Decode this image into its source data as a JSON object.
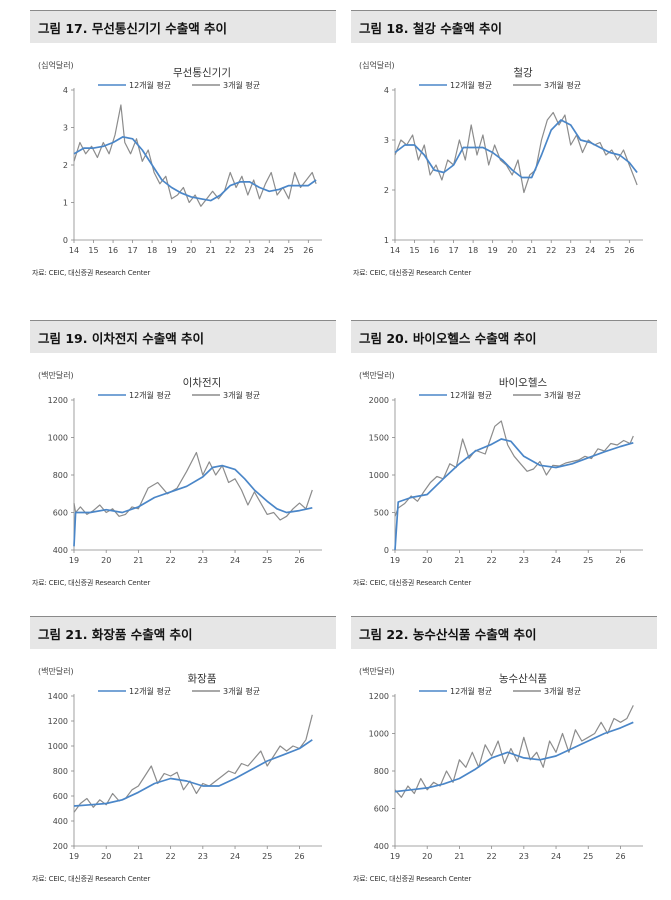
{
  "source_text": "자료: CEIC, 대신증권 Research Center",
  "legend": {
    "avg12": "12개월 평균",
    "avg3": "3개월 평균"
  },
  "colors": {
    "avg12": "#4a86c8",
    "avg3": "#8c8c8c",
    "axis": "#888888"
  },
  "panels": [
    {
      "header": "그림 17. 무선통신기기 수출액 추이",
      "unit": "(십억달러)"
    },
    {
      "header": "그림 18. 철강 수출액 추이",
      "unit": "(십억달러)"
    },
    {
      "header": "그림 19. 이차전지 수출액 추이",
      "unit": "(백만달러)"
    },
    {
      "header": "그림 20. 바이오헬스 수출액 추이",
      "unit": "(백만달러)"
    },
    {
      "header": "그림 21. 화장품 수출액 추이",
      "unit": "(백만달러)"
    },
    {
      "header": "그림 22. 농수산식품 수출액 추이",
      "unit": "(백만달러)"
    }
  ],
  "chart_data": [
    {
      "type": "line",
      "title": "무선통신기기",
      "x_ticks": [
        "14",
        "15",
        "16",
        "17",
        "18",
        "19",
        "20",
        "21",
        "22",
        "23",
        "24",
        "25",
        "26"
      ],
      "xlim": [
        2014.0,
        2026.7
      ],
      "ylim": [
        0,
        4
      ],
      "y_ticks": [
        0,
        1,
        2,
        3,
        4
      ],
      "series": [
        {
          "name": "12개월 평균",
          "x": [
            2014.0,
            2014.5,
            2015.0,
            2015.5,
            2016.0,
            2016.5,
            2017.0,
            2017.5,
            2018.0,
            2018.5,
            2019.0,
            2019.5,
            2020.0,
            2020.5,
            2021.0,
            2021.5,
            2022.0,
            2022.5,
            2023.0,
            2023.5,
            2024.0,
            2024.5,
            2025.0,
            2025.5,
            2026.0,
            2026.4
          ],
          "y": [
            2.3,
            2.45,
            2.45,
            2.5,
            2.6,
            2.75,
            2.7,
            2.4,
            2.0,
            1.6,
            1.4,
            1.25,
            1.15,
            1.1,
            1.05,
            1.2,
            1.45,
            1.55,
            1.55,
            1.4,
            1.3,
            1.35,
            1.45,
            1.45,
            1.45,
            1.6
          ]
        },
        {
          "name": "3개월 평균",
          "x": [
            2014.0,
            2014.3,
            2014.6,
            2014.9,
            2015.2,
            2015.5,
            2015.8,
            2016.1,
            2016.4,
            2016.6,
            2016.9,
            2017.2,
            2017.5,
            2017.8,
            2018.1,
            2018.4,
            2018.7,
            2019.0,
            2019.3,
            2019.6,
            2019.9,
            2020.2,
            2020.5,
            2020.8,
            2021.1,
            2021.4,
            2021.7,
            2022.0,
            2022.3,
            2022.6,
            2022.9,
            2023.2,
            2023.5,
            2023.8,
            2024.1,
            2024.4,
            2024.7,
            2025.0,
            2025.3,
            2025.6,
            2025.9,
            2026.2,
            2026.4
          ],
          "y": [
            2.1,
            2.6,
            2.3,
            2.5,
            2.2,
            2.6,
            2.3,
            2.8,
            3.6,
            2.6,
            2.3,
            2.7,
            2.1,
            2.4,
            1.8,
            1.5,
            1.7,
            1.1,
            1.2,
            1.4,
            1.0,
            1.2,
            0.9,
            1.1,
            1.3,
            1.1,
            1.3,
            1.8,
            1.4,
            1.7,
            1.2,
            1.6,
            1.1,
            1.5,
            1.8,
            1.2,
            1.4,
            1.1,
            1.8,
            1.4,
            1.6,
            1.8,
            1.5
          ]
        }
      ]
    },
    {
      "type": "line",
      "title": "철강",
      "x_ticks": [
        "14",
        "15",
        "16",
        "17",
        "18",
        "19",
        "20",
        "21",
        "22",
        "23",
        "24",
        "25",
        "26"
      ],
      "xlim": [
        2014.0,
        2026.7
      ],
      "ylim": [
        1,
        4
      ],
      "y_ticks": [
        1,
        2,
        3,
        4
      ],
      "series": [
        {
          "name": "12개월 평균",
          "x": [
            2014.0,
            2014.5,
            2015.0,
            2015.5,
            2016.0,
            2016.5,
            2017.0,
            2017.5,
            2018.0,
            2018.5,
            2019.0,
            2019.5,
            2020.0,
            2020.5,
            2021.0,
            2021.5,
            2022.0,
            2022.5,
            2023.0,
            2023.5,
            2024.0,
            2024.5,
            2025.0,
            2025.5,
            2026.0,
            2026.4
          ],
          "y": [
            2.75,
            2.9,
            2.9,
            2.7,
            2.4,
            2.35,
            2.5,
            2.85,
            2.85,
            2.85,
            2.75,
            2.6,
            2.4,
            2.25,
            2.25,
            2.7,
            3.2,
            3.4,
            3.3,
            3.0,
            2.95,
            2.85,
            2.75,
            2.7,
            2.55,
            2.35
          ]
        },
        {
          "name": "3개월 평균",
          "x": [
            2014.0,
            2014.3,
            2014.6,
            2014.9,
            2015.2,
            2015.5,
            2015.8,
            2016.1,
            2016.4,
            2016.7,
            2017.0,
            2017.3,
            2017.6,
            2017.9,
            2018.2,
            2018.5,
            2018.8,
            2019.1,
            2019.4,
            2019.7,
            2020.0,
            2020.3,
            2020.6,
            2020.9,
            2021.2,
            2021.5,
            2021.8,
            2022.1,
            2022.4,
            2022.7,
            2023.0,
            2023.3,
            2023.6,
            2023.9,
            2024.2,
            2024.5,
            2024.8,
            2025.1,
            2025.4,
            2025.7,
            2026.0,
            2026.3,
            2026.4
          ],
          "y": [
            2.7,
            3.0,
            2.9,
            3.1,
            2.6,
            2.9,
            2.3,
            2.5,
            2.2,
            2.6,
            2.5,
            3.0,
            2.6,
            3.3,
            2.7,
            3.1,
            2.5,
            2.9,
            2.6,
            2.5,
            2.3,
            2.6,
            1.95,
            2.3,
            2.4,
            3.0,
            3.4,
            3.55,
            3.3,
            3.5,
            2.9,
            3.1,
            2.75,
            3.0,
            2.9,
            2.95,
            2.7,
            2.8,
            2.6,
            2.8,
            2.5,
            2.2,
            2.1
          ]
        }
      ]
    },
    {
      "type": "line",
      "title": "이차전지",
      "x_ticks": [
        "19",
        "20",
        "21",
        "22",
        "23",
        "24",
        "25",
        "26"
      ],
      "xlim": [
        2019.0,
        2026.7
      ],
      "ylim": [
        400,
        1200
      ],
      "y_ticks": [
        400,
        600,
        800,
        1000,
        1200
      ],
      "series": [
        {
          "name": "12개월 평균",
          "x": [
            2019.0,
            2019.05,
            2019.5,
            2020.0,
            2020.5,
            2021.0,
            2021.5,
            2022.0,
            2022.5,
            2023.0,
            2023.3,
            2023.6,
            2024.0,
            2024.3,
            2024.6,
            2025.0,
            2025.3,
            2025.6,
            2026.0,
            2026.4
          ],
          "y": [
            420,
            600,
            600,
            615,
            600,
            630,
            680,
            710,
            740,
            790,
            840,
            850,
            830,
            780,
            720,
            660,
            620,
            600,
            610,
            625
          ]
        },
        {
          "name": "3개월 평균",
          "x": [
            2019.0,
            2019.05,
            2019.2,
            2019.4,
            2019.6,
            2019.8,
            2020.0,
            2020.2,
            2020.4,
            2020.6,
            2020.8,
            2021.0,
            2021.3,
            2021.6,
            2021.9,
            2022.2,
            2022.5,
            2022.8,
            2023.0,
            2023.2,
            2023.4,
            2023.6,
            2023.8,
            2024.0,
            2024.2,
            2024.4,
            2024.6,
            2024.8,
            2025.0,
            2025.2,
            2025.4,
            2025.6,
            2025.8,
            2026.0,
            2026.2,
            2026.4
          ],
          "y": [
            650,
            600,
            630,
            590,
            610,
            640,
            600,
            620,
            580,
            590,
            630,
            620,
            730,
            760,
            700,
            730,
            820,
            920,
            800,
            870,
            800,
            850,
            760,
            780,
            720,
            640,
            710,
            650,
            590,
            600,
            560,
            580,
            620,
            650,
            620,
            720
          ]
        }
      ]
    },
    {
      "type": "line",
      "title": "바이오헬스",
      "x_ticks": [
        "19",
        "20",
        "21",
        "22",
        "23",
        "24",
        "25",
        "26"
      ],
      "xlim": [
        2019.0,
        2026.7
      ],
      "ylim": [
        0,
        2000
      ],
      "y_ticks": [
        0,
        500,
        1000,
        1500,
        2000
      ],
      "series": [
        {
          "name": "12개월 평균",
          "x": [
            2019.0,
            2019.1,
            2019.5,
            2020.0,
            2020.5,
            2021.0,
            2021.5,
            2022.0,
            2022.3,
            2022.6,
            2023.0,
            2023.5,
            2024.0,
            2024.5,
            2025.0,
            2025.5,
            2026.0,
            2026.4
          ],
          "y": [
            0,
            640,
            700,
            740,
            950,
            1150,
            1320,
            1410,
            1480,
            1450,
            1250,
            1130,
            1100,
            1150,
            1230,
            1310,
            1380,
            1430
          ]
        },
        {
          "name": "3개월 평균",
          "x": [
            2019.0,
            2019.1,
            2019.3,
            2019.5,
            2019.7,
            2019.9,
            2020.1,
            2020.3,
            2020.5,
            2020.7,
            2020.9,
            2021.1,
            2021.3,
            2021.5,
            2021.8,
            2022.1,
            2022.3,
            2022.5,
            2022.7,
            2022.9,
            2023.1,
            2023.3,
            2023.5,
            2023.7,
            2023.9,
            2024.1,
            2024.3,
            2024.5,
            2024.7,
            2024.9,
            2025.1,
            2025.3,
            2025.5,
            2025.7,
            2025.9,
            2026.1,
            2026.3,
            2026.4
          ],
          "y": [
            450,
            560,
            620,
            720,
            650,
            780,
            900,
            980,
            950,
            1150,
            1100,
            1480,
            1220,
            1330,
            1280,
            1650,
            1720,
            1400,
            1250,
            1150,
            1050,
            1080,
            1180,
            1000,
            1130,
            1120,
            1160,
            1180,
            1200,
            1250,
            1220,
            1350,
            1320,
            1420,
            1400,
            1460,
            1420,
            1520
          ]
        }
      ]
    },
    {
      "type": "line",
      "title": "화장품",
      "x_ticks": [
        "19",
        "20",
        "21",
        "22",
        "23",
        "24",
        "25",
        "26"
      ],
      "xlim": [
        2019.0,
        2026.7
      ],
      "ylim": [
        200,
        1400
      ],
      "y_ticks": [
        200,
        400,
        600,
        800,
        1000,
        1200,
        1400
      ],
      "series": [
        {
          "name": "12개월 평균",
          "x": [
            2019.0,
            2019.5,
            2020.0,
            2020.5,
            2021.0,
            2021.5,
            2022.0,
            2022.5,
            2023.0,
            2023.5,
            2024.0,
            2024.5,
            2025.0,
            2025.5,
            2026.0,
            2026.4
          ],
          "y": [
            520,
            530,
            540,
            570,
            630,
            700,
            740,
            720,
            680,
            680,
            740,
            810,
            880,
            930,
            980,
            1050
          ]
        },
        {
          "name": "3개월 평균",
          "x": [
            2019.0,
            2019.2,
            2019.4,
            2019.6,
            2019.8,
            2020.0,
            2020.2,
            2020.4,
            2020.6,
            2020.8,
            2021.0,
            2021.2,
            2021.4,
            2021.6,
            2021.8,
            2022.0,
            2022.2,
            2022.4,
            2022.6,
            2022.8,
            2023.0,
            2023.2,
            2023.4,
            2023.6,
            2023.8,
            2024.0,
            2024.2,
            2024.4,
            2024.6,
            2024.8,
            2025.0,
            2025.2,
            2025.4,
            2025.6,
            2025.8,
            2026.0,
            2026.2,
            2026.4
          ],
          "y": [
            470,
            540,
            580,
            510,
            570,
            530,
            620,
            560,
            580,
            650,
            680,
            760,
            840,
            700,
            780,
            760,
            790,
            650,
            720,
            620,
            700,
            680,
            720,
            760,
            800,
            780,
            860,
            840,
            900,
            960,
            840,
            920,
            1000,
            960,
            1000,
            980,
            1050,
            1250
          ]
        }
      ]
    },
    {
      "type": "line",
      "title": "농수산식품",
      "x_ticks": [
        "19",
        "20",
        "21",
        "22",
        "23",
        "24",
        "25",
        "26"
      ],
      "xlim": [
        2019.0,
        2026.7
      ],
      "ylim": [
        400,
        1200
      ],
      "y_ticks": [
        400,
        600,
        800,
        1000,
        1200
      ],
      "series": [
        {
          "name": "12개월 평균",
          "x": [
            2019.0,
            2019.5,
            2020.0,
            2020.5,
            2021.0,
            2021.5,
            2022.0,
            2022.5,
            2023.0,
            2023.5,
            2024.0,
            2024.5,
            2025.0,
            2025.5,
            2026.0,
            2026.4
          ],
          "y": [
            690,
            700,
            710,
            730,
            760,
            810,
            870,
            900,
            870,
            860,
            880,
            920,
            960,
            1000,
            1030,
            1060
          ]
        },
        {
          "name": "3개월 평균",
          "x": [
            2019.0,
            2019.2,
            2019.4,
            2019.6,
            2019.8,
            2020.0,
            2020.2,
            2020.4,
            2020.6,
            2020.8,
            2021.0,
            2021.2,
            2021.4,
            2021.6,
            2021.8,
            2022.0,
            2022.2,
            2022.4,
            2022.6,
            2022.8,
            2023.0,
            2023.2,
            2023.4,
            2023.6,
            2023.8,
            2024.0,
            2024.2,
            2024.4,
            2024.6,
            2024.8,
            2025.0,
            2025.2,
            2025.4,
            2025.6,
            2025.8,
            2026.0,
            2026.2,
            2026.4
          ],
          "y": [
            700,
            660,
            720,
            680,
            760,
            700,
            740,
            720,
            800,
            740,
            860,
            820,
            900,
            820,
            940,
            880,
            960,
            840,
            920,
            850,
            980,
            860,
            900,
            820,
            960,
            900,
            1000,
            900,
            1020,
            960,
            980,
            1000,
            1060,
            1000,
            1080,
            1060,
            1080,
            1150
          ]
        }
      ]
    }
  ]
}
